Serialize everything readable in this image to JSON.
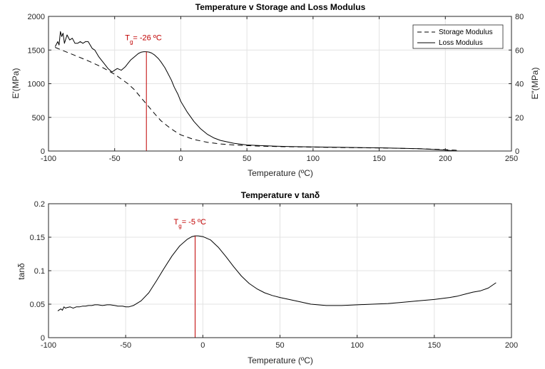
{
  "chart_data": [
    {
      "type": "line",
      "title": "Temperature v Storage and Loss Modulus",
      "xlabel": "Temperature (ºC)",
      "ylabel": "E'(MPa)",
      "y2label": "E\"(MPa)",
      "xlim": [
        -100,
        250
      ],
      "ylim": [
        0,
        2000
      ],
      "y2lim": [
        0,
        80
      ],
      "xticks": [
        -100,
        -50,
        0,
        50,
        100,
        150,
        200,
        250
      ],
      "yticks": [
        0,
        500,
        1000,
        1500,
        2000
      ],
      "y2ticks": [
        0,
        20,
        40,
        60,
        80
      ],
      "grid": true,
      "legend_position": "top-right",
      "annotation": {
        "prefix": "T",
        "subscript": "g",
        "text": "= -26 ºC",
        "x": -26
      },
      "series": [
        {
          "name": "Storage Modulus",
          "axis": "left",
          "style": "dashed",
          "x": [
            -95,
            -90,
            -80,
            -70,
            -60,
            -50,
            -40,
            -35,
            -30,
            -26,
            -20,
            -15,
            -10,
            -5,
            0,
            10,
            20,
            30,
            40,
            50,
            60,
            80,
            100,
            120,
            150,
            180,
            200,
            210
          ],
          "y": [
            1540,
            1500,
            1420,
            1340,
            1250,
            1140,
            1000,
            910,
            790,
            700,
            560,
            450,
            370,
            300,
            240,
            170,
            130,
            105,
            90,
            80,
            72,
            64,
            58,
            52,
            45,
            35,
            20,
            10
          ]
        },
        {
          "name": "Loss Modulus",
          "axis": "right",
          "style": "solid",
          "x": [
            -95,
            -93,
            -92,
            -91,
            -90,
            -89,
            -88,
            -86,
            -84,
            -82,
            -80,
            -78,
            -76,
            -74,
            -72,
            -70,
            -67,
            -65,
            -62,
            -60,
            -58,
            -55,
            -52,
            -50,
            -48,
            -45,
            -42,
            -40,
            -38,
            -35,
            -32,
            -30,
            -28,
            -26,
            -24,
            -22,
            -20,
            -17,
            -15,
            -12,
            -10,
            -7,
            -5,
            -2,
            0,
            5,
            10,
            15,
            20,
            25,
            30,
            40,
            50,
            60,
            70,
            80,
            100,
            120,
            150,
            180,
            200,
            205,
            210
          ],
          "y": [
            62,
            65,
            63,
            71,
            68,
            70,
            64,
            69,
            66,
            67,
            64,
            64,
            65,
            64,
            65,
            65,
            61,
            60,
            56,
            54,
            52,
            49,
            47,
            48,
            49,
            48,
            50,
            52,
            54,
            56,
            58,
            58.7,
            59,
            59,
            58.8,
            58.2,
            57.2,
            55,
            53,
            49.5,
            46.5,
            42,
            38,
            33.5,
            29.5,
            23,
            17.5,
            13.2,
            10,
            7.8,
            6.3,
            4.6,
            3.6,
            3.2,
            2.9,
            2.7,
            2.4,
            2.2,
            1.9,
            1.4,
            0.6,
            0.2,
            0
          ]
        }
      ]
    },
    {
      "type": "line",
      "title": "Temperature v tanδ",
      "xlabel": "Temperature (ºC)",
      "ylabel": "tanδ",
      "xlim": [
        -100,
        200
      ],
      "ylim": [
        0,
        0.2
      ],
      "xticks": [
        -100,
        -50,
        0,
        50,
        100,
        150,
        200
      ],
      "yticks": [
        0,
        0.05,
        0.1,
        0.15,
        0.2
      ],
      "grid": true,
      "annotation": {
        "prefix": "T",
        "subscript": "g",
        "text": "= -5 ºC",
        "x": -5
      },
      "series": [
        {
          "name": "tan delta",
          "style": "solid",
          "x": [
            -94,
            -92,
            -91,
            -90,
            -89,
            -88,
            -86,
            -84,
            -82,
            -80,
            -78,
            -76,
            -74,
            -72,
            -70,
            -68,
            -65,
            -62,
            -60,
            -57,
            -55,
            -52,
            -50,
            -48,
            -45,
            -40,
            -35,
            -30,
            -25,
            -20,
            -15,
            -10,
            -7,
            -5,
            -3,
            0,
            5,
            10,
            15,
            20,
            25,
            30,
            35,
            40,
            45,
            50,
            60,
            70,
            80,
            90,
            100,
            110,
            120,
            130,
            140,
            150,
            160,
            165,
            170,
            175,
            180,
            185,
            190
          ],
          "y": [
            0.04,
            0.043,
            0.041,
            0.046,
            0.044,
            0.045,
            0.046,
            0.044,
            0.046,
            0.046,
            0.047,
            0.047,
            0.048,
            0.048,
            0.049,
            0.049,
            0.048,
            0.049,
            0.049,
            0.048,
            0.047,
            0.047,
            0.046,
            0.046,
            0.048,
            0.055,
            0.067,
            0.085,
            0.104,
            0.122,
            0.137,
            0.147,
            0.151,
            0.152,
            0.152,
            0.151,
            0.146,
            0.135,
            0.121,
            0.106,
            0.092,
            0.081,
            0.073,
            0.067,
            0.063,
            0.06,
            0.055,
            0.05,
            0.048,
            0.048,
            0.049,
            0.05,
            0.051,
            0.053,
            0.055,
            0.057,
            0.06,
            0.062,
            0.065,
            0.068,
            0.07,
            0.074,
            0.082
          ]
        }
      ]
    }
  ]
}
